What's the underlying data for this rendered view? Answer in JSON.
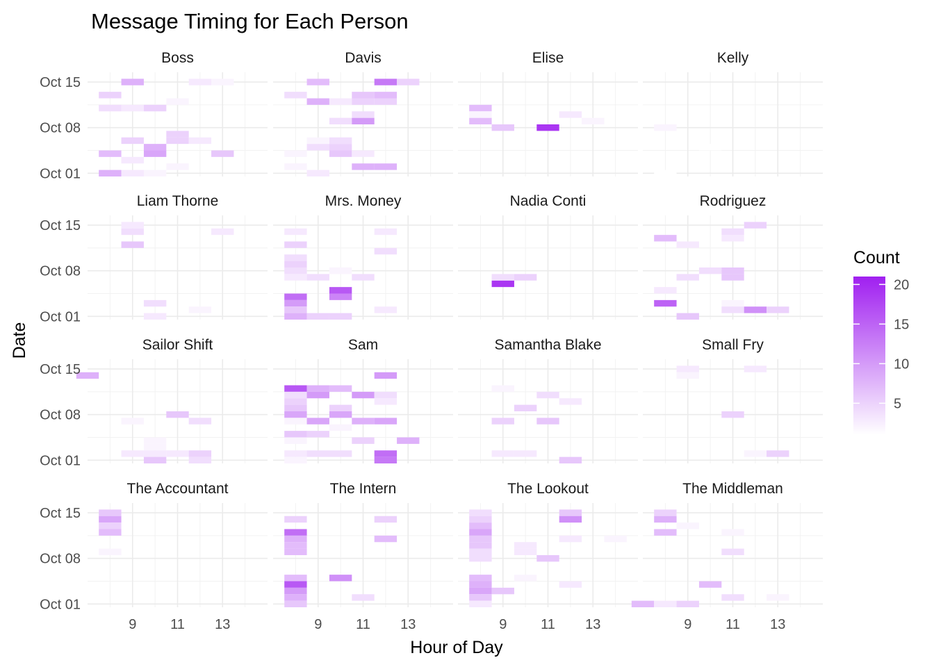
{
  "chart_data": {
    "type": "heatmap",
    "title": "Message Timing for Each Person",
    "xlabel": "Hour of Day",
    "ylabel": "Date",
    "x_ticks": [
      9,
      11,
      13
    ],
    "y_ticks": [
      "Oct 01",
      "Oct 08",
      "Oct 15"
    ],
    "y_tick_values": [
      1,
      8,
      15
    ],
    "xlim": [
      7,
      15
    ],
    "ylim": [
      0.5,
      16.5
    ],
    "tile_width_hours": 1,
    "tile_height_days": 1,
    "grid": true,
    "legend": {
      "title": "Count",
      "position": "right",
      "ticks": [
        5,
        10,
        15,
        20
      ],
      "range": [
        1,
        21
      ],
      "color_low": "#ffffff",
      "color_high": "#a020f0"
    },
    "panels": [
      {
        "name": "Boss",
        "cells": [
          [
            8,
            1,
            8
          ],
          [
            9,
            1,
            3
          ],
          [
            10,
            1,
            2
          ],
          [
            8,
            4,
            7
          ],
          [
            9,
            3,
            3
          ],
          [
            10,
            4,
            9
          ],
          [
            10,
            5,
            8
          ],
          [
            9,
            6,
            5
          ],
          [
            11,
            6,
            5
          ],
          [
            11,
            7,
            5
          ],
          [
            12,
            6,
            3
          ],
          [
            13,
            4,
            6
          ],
          [
            11,
            2,
            2
          ],
          [
            8,
            11,
            4
          ],
          [
            9,
            11,
            3
          ],
          [
            10,
            11,
            5
          ],
          [
            8,
            13,
            5
          ],
          [
            9,
            15,
            8
          ],
          [
            11,
            12,
            2
          ],
          [
            12,
            15,
            3
          ],
          [
            13,
            15,
            2
          ]
        ]
      },
      {
        "name": "Davis",
        "cells": [
          [
            8,
            2,
            2
          ],
          [
            8,
            4,
            2
          ],
          [
            9,
            1,
            3
          ],
          [
            9,
            5,
            4
          ],
          [
            10,
            5,
            5
          ],
          [
            10,
            4,
            6
          ],
          [
            11,
            4,
            3
          ],
          [
            9,
            6,
            2
          ],
          [
            10,
            6,
            4
          ],
          [
            11,
            2,
            8
          ],
          [
            12,
            2,
            8
          ],
          [
            10,
            9,
            4
          ],
          [
            11,
            9,
            10
          ],
          [
            11,
            10,
            4
          ],
          [
            8,
            13,
            4
          ],
          [
            9,
            12,
            8
          ],
          [
            10,
            12,
            3
          ],
          [
            11,
            12,
            5
          ],
          [
            12,
            12,
            5
          ],
          [
            9,
            15,
            7
          ],
          [
            11,
            13,
            6
          ],
          [
            12,
            15,
            13
          ],
          [
            13,
            15,
            5
          ],
          [
            12,
            13,
            7
          ]
        ]
      },
      {
        "name": "Elise",
        "cells": [
          [
            8,
            9,
            7
          ],
          [
            8,
            11,
            7
          ],
          [
            8,
            10,
            2
          ],
          [
            9,
            8,
            6
          ],
          [
            11,
            8,
            19
          ],
          [
            12,
            10,
            3
          ],
          [
            13,
            9,
            2
          ]
        ]
      },
      {
        "name": "Kelly",
        "cells": [
          [
            8,
            8,
            2
          ],
          [
            10,
            5,
            1
          ],
          [
            8,
            1,
            1
          ]
        ]
      },
      {
        "name": "Liam Thorne",
        "cells": [
          [
            9,
            14,
            4
          ],
          [
            9,
            15,
            3
          ],
          [
            9,
            12,
            6
          ],
          [
            10,
            3,
            4
          ],
          [
            10,
            1,
            3
          ],
          [
            12,
            2,
            2
          ],
          [
            13,
            14,
            3
          ]
        ]
      },
      {
        "name": "Mrs. Money",
        "cells": [
          [
            8,
            14,
            3
          ],
          [
            8,
            12,
            5
          ],
          [
            8,
            10,
            4
          ],
          [
            8,
            9,
            5
          ],
          [
            8,
            8,
            4
          ],
          [
            9,
            7,
            4
          ],
          [
            8,
            7,
            3
          ],
          [
            8,
            4,
            14
          ],
          [
            8,
            3,
            10
          ],
          [
            8,
            2,
            6
          ],
          [
            8,
            1,
            8
          ],
          [
            9,
            1,
            5
          ],
          [
            10,
            1,
            5
          ],
          [
            10,
            5,
            16
          ],
          [
            10,
            4,
            12
          ],
          [
            10,
            8,
            2
          ],
          [
            11,
            7,
            4
          ],
          [
            12,
            2,
            3
          ],
          [
            12,
            14,
            3
          ],
          [
            12,
            11,
            4
          ]
        ]
      },
      {
        "name": "Nadia Conti",
        "cells": [
          [
            9,
            6,
            19
          ],
          [
            9,
            7,
            4
          ],
          [
            10,
            7,
            5
          ]
        ]
      },
      {
        "name": "Rodriguez",
        "cells": [
          [
            8,
            13,
            7
          ],
          [
            8,
            5,
            3
          ],
          [
            8,
            3,
            15
          ],
          [
            9,
            12,
            3
          ],
          [
            9,
            7,
            4
          ],
          [
            9,
            1,
            6
          ],
          [
            10,
            8,
            4
          ],
          [
            11,
            8,
            6
          ],
          [
            11,
            7,
            6
          ],
          [
            11,
            14,
            4
          ],
          [
            11,
            13,
            3
          ],
          [
            11,
            3,
            2
          ],
          [
            11,
            2,
            4
          ],
          [
            12,
            15,
            5
          ],
          [
            12,
            2,
            11
          ],
          [
            13,
            2,
            5
          ]
        ]
      },
      {
        "name": "Sailor Shift",
        "cells": [
          [
            7,
            14,
            8
          ],
          [
            9,
            7,
            2
          ],
          [
            9,
            2,
            3
          ],
          [
            10,
            4,
            2
          ],
          [
            10,
            3,
            2
          ],
          [
            10,
            2,
            3
          ],
          [
            10,
            1,
            6
          ],
          [
            11,
            8,
            6
          ],
          [
            11,
            2,
            3
          ],
          [
            12,
            7,
            4
          ],
          [
            12,
            2,
            5
          ],
          [
            12,
            1,
            4
          ]
        ]
      },
      {
        "name": "Sam",
        "cells": [
          [
            8,
            12,
            16
          ],
          [
            8,
            11,
            4
          ],
          [
            8,
            10,
            5
          ],
          [
            8,
            9,
            6
          ],
          [
            8,
            8,
            9
          ],
          [
            8,
            7,
            2
          ],
          [
            8,
            5,
            6
          ],
          [
            8,
            4,
            2
          ],
          [
            8,
            2,
            3
          ],
          [
            8,
            1,
            2
          ],
          [
            9,
            12,
            8
          ],
          [
            9,
            11,
            10
          ],
          [
            9,
            7,
            9
          ],
          [
            9,
            5,
            5
          ],
          [
            9,
            2,
            4
          ],
          [
            10,
            12,
            7
          ],
          [
            10,
            9,
            5
          ],
          [
            10,
            8,
            9
          ],
          [
            10,
            6,
            2
          ],
          [
            10,
            2,
            4
          ],
          [
            11,
            11,
            10
          ],
          [
            11,
            7,
            8
          ],
          [
            11,
            4,
            5
          ],
          [
            12,
            14,
            10
          ],
          [
            12,
            11,
            4
          ],
          [
            12,
            10,
            3
          ],
          [
            12,
            7,
            9
          ],
          [
            12,
            2,
            14
          ],
          [
            12,
            1,
            13
          ],
          [
            13,
            4,
            8
          ]
        ]
      },
      {
        "name": "Samantha Blake",
        "cells": [
          [
            9,
            12,
            2
          ],
          [
            9,
            7,
            5
          ],
          [
            9,
            2,
            3
          ],
          [
            10,
            2,
            3
          ],
          [
            10,
            9,
            5
          ],
          [
            11,
            11,
            4
          ],
          [
            11,
            7,
            6
          ],
          [
            12,
            10,
            3
          ],
          [
            12,
            1,
            6
          ]
        ]
      },
      {
        "name": "Small Fry",
        "cells": [
          [
            9,
            15,
            3
          ],
          [
            9,
            14,
            2
          ],
          [
            11,
            8,
            5
          ],
          [
            12,
            15,
            3
          ],
          [
            12,
            2,
            2
          ],
          [
            13,
            2,
            5
          ]
        ]
      },
      {
        "name": "The Accountant",
        "cells": [
          [
            8,
            15,
            6
          ],
          [
            8,
            14,
            9
          ],
          [
            8,
            13,
            5
          ],
          [
            8,
            12,
            7
          ],
          [
            8,
            9,
            2
          ]
        ]
      },
      {
        "name": "The Intern",
        "cells": [
          [
            8,
            14,
            5
          ],
          [
            8,
            12,
            14
          ],
          [
            8,
            11,
            8
          ],
          [
            8,
            10,
            7
          ],
          [
            8,
            9,
            7
          ],
          [
            8,
            5,
            7
          ],
          [
            8,
            4,
            16
          ],
          [
            8,
            3,
            10
          ],
          [
            8,
            2,
            8
          ],
          [
            8,
            1,
            6
          ],
          [
            10,
            5,
            11
          ],
          [
            11,
            2,
            4
          ],
          [
            12,
            14,
            5
          ],
          [
            12,
            11,
            7
          ]
        ]
      },
      {
        "name": "The Lookout",
        "cells": [
          [
            8,
            15,
            4
          ],
          [
            8,
            14,
            5
          ],
          [
            8,
            13,
            7
          ],
          [
            8,
            12,
            9
          ],
          [
            8,
            11,
            6
          ],
          [
            8,
            10,
            6
          ],
          [
            8,
            9,
            4
          ],
          [
            8,
            8,
            4
          ],
          [
            8,
            5,
            7
          ],
          [
            8,
            4,
            8
          ],
          [
            8,
            3,
            9
          ],
          [
            8,
            2,
            6
          ],
          [
            8,
            1,
            3
          ],
          [
            9,
            3,
            6
          ],
          [
            10,
            10,
            3
          ],
          [
            10,
            9,
            3
          ],
          [
            10,
            5,
            2
          ],
          [
            11,
            8,
            6
          ],
          [
            12,
            15,
            6
          ],
          [
            12,
            14,
            11
          ],
          [
            12,
            11,
            3
          ],
          [
            12,
            4,
            3
          ],
          [
            14,
            11,
            2
          ]
        ]
      },
      {
        "name": "The Middleman",
        "cells": [
          [
            8,
            15,
            5
          ],
          [
            8,
            14,
            8
          ],
          [
            8,
            12,
            7
          ],
          [
            7,
            1,
            7
          ],
          [
            8,
            1,
            3
          ],
          [
            9,
            1,
            5
          ],
          [
            9,
            13,
            2
          ],
          [
            10,
            4,
            7
          ],
          [
            11,
            12,
            2
          ],
          [
            11,
            9,
            4
          ],
          [
            11,
            2,
            4
          ],
          [
            13,
            2,
            2
          ]
        ]
      }
    ]
  }
}
